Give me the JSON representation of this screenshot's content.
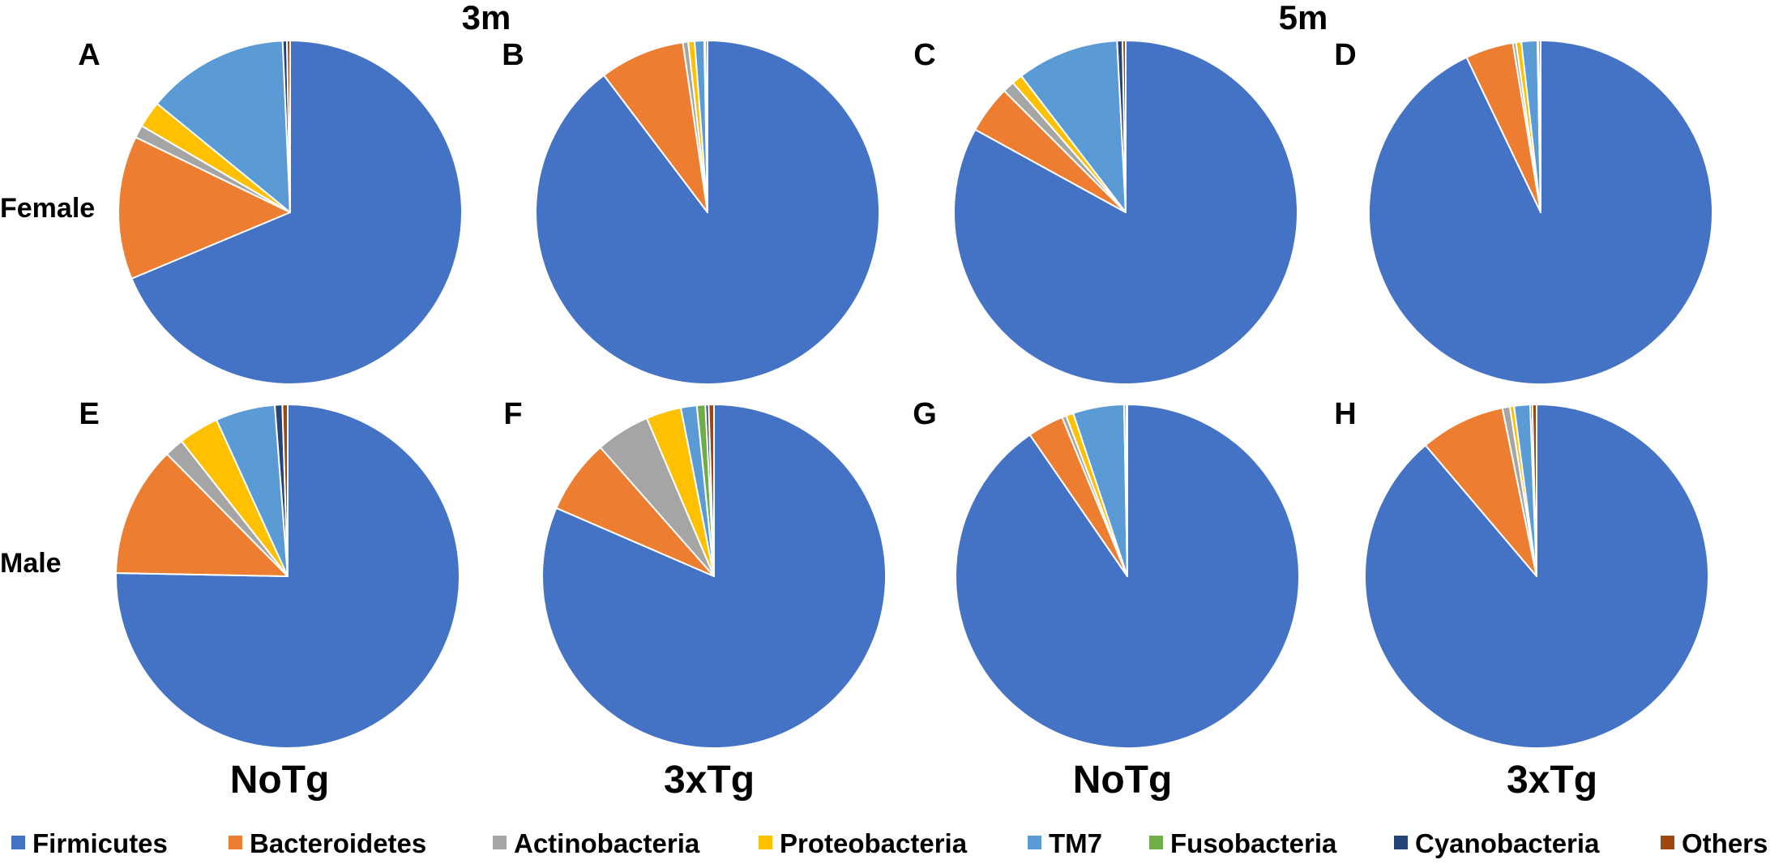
{
  "headers": {
    "left": "3m",
    "right": "5m"
  },
  "row_labels": {
    "top": "Female",
    "bottom": "Male"
  },
  "column_labels": [
    "NoTg",
    "3xTg",
    "NoTg",
    "3xTg"
  ],
  "legend": [
    {
      "name": "Firmicutes",
      "color": "#4472C4"
    },
    {
      "name": "Bacteroidetes",
      "color": "#ED7D31"
    },
    {
      "name": "Actinobacteria",
      "color": "#A5A5A5"
    },
    {
      "name": "Proteobacteria",
      "color": "#FFC000"
    },
    {
      "name": "TM7",
      "color": "#5B9BD5"
    },
    {
      "name": "Fusobacteria",
      "color": "#70AD47"
    },
    {
      "name": "Cyanobacteria",
      "color": "#264478"
    },
    {
      "name": "Others",
      "color": "#9E480E"
    }
  ],
  "chart_data": [
    {
      "type": "pie",
      "panel": "A",
      "sex": "Female",
      "age": "3m",
      "genotype": "NoTg",
      "categories": [
        "Firmicutes",
        "Bacteroidetes",
        "Actinobacteria",
        "Proteobacteria",
        "TM7",
        "Fusobacteria",
        "Cyanobacteria",
        "Others"
      ],
      "values": [
        68.7,
        13.5,
        1.2,
        2.5,
        13.4,
        0.0,
        0.4,
        0.3
      ]
    },
    {
      "type": "pie",
      "panel": "B",
      "sex": "Female",
      "age": "3m",
      "genotype": "3xTg",
      "categories": [
        "Firmicutes",
        "Bacteroidetes",
        "Actinobacteria",
        "Proteobacteria",
        "TM7",
        "Fusobacteria",
        "Cyanobacteria",
        "Others"
      ],
      "values": [
        89.7,
        8.0,
        0.5,
        0.6,
        0.9,
        0.0,
        0.1,
        0.2
      ]
    },
    {
      "type": "pie",
      "panel": "C",
      "sex": "Female",
      "age": "5m",
      "genotype": "NoTg",
      "categories": [
        "Firmicutes",
        "Bacteroidetes",
        "Actinobacteria",
        "Proteobacteria",
        "TM7",
        "Fusobacteria",
        "Cyanobacteria",
        "Others"
      ],
      "values": [
        83.0,
        4.5,
        1.1,
        1.0,
        9.6,
        0.0,
        0.5,
        0.3
      ]
    },
    {
      "type": "pie",
      "panel": "D",
      "sex": "Female",
      "age": "5m",
      "genotype": "3xTg",
      "categories": [
        "Firmicutes",
        "Bacteroidetes",
        "Actinobacteria",
        "Proteobacteria",
        "TM7",
        "Fusobacteria",
        "Cyanobacteria",
        "Others"
      ],
      "values": [
        92.9,
        4.5,
        0.3,
        0.5,
        1.5,
        0.0,
        0.1,
        0.2
      ]
    },
    {
      "type": "pie",
      "panel": "E",
      "sex": "Male",
      "age": "3m",
      "genotype": "NoTg",
      "categories": [
        "Firmicutes",
        "Bacteroidetes",
        "Actinobacteria",
        "Proteobacteria",
        "TM7",
        "Fusobacteria",
        "Cyanobacteria",
        "Others"
      ],
      "values": [
        75.3,
        12.3,
        1.8,
        3.8,
        5.6,
        0.0,
        0.7,
        0.5
      ]
    },
    {
      "type": "pie",
      "panel": "F",
      "sex": "Male",
      "age": "3m",
      "genotype": "3xTg",
      "categories": [
        "Firmicutes",
        "Bacteroidetes",
        "Actinobacteria",
        "Proteobacteria",
        "TM7",
        "Fusobacteria",
        "Cyanobacteria",
        "Others"
      ],
      "values": [
        81.5,
        7.0,
        5.1,
        3.3,
        1.5,
        0.8,
        0.3,
        0.5
      ]
    },
    {
      "type": "pie",
      "panel": "G",
      "sex": "Male",
      "age": "5m",
      "genotype": "NoTg",
      "categories": [
        "Firmicutes",
        "Bacteroidetes",
        "Actinobacteria",
        "Proteobacteria",
        "TM7",
        "Fusobacteria",
        "Cyanobacteria",
        "Others"
      ],
      "values": [
        90.4,
        3.4,
        0.4,
        0.7,
        4.8,
        0.0,
        0.2,
        0.1
      ]
    },
    {
      "type": "pie",
      "panel": "H",
      "sex": "Male",
      "age": "5m",
      "genotype": "3xTg",
      "categories": [
        "Firmicutes",
        "Bacteroidetes",
        "Actinobacteria",
        "Proteobacteria",
        "TM7",
        "Fusobacteria",
        "Cyanobacteria",
        "Others"
      ],
      "values": [
        88.8,
        8.0,
        0.7,
        0.4,
        1.5,
        0.0,
        0.2,
        0.4
      ]
    }
  ]
}
